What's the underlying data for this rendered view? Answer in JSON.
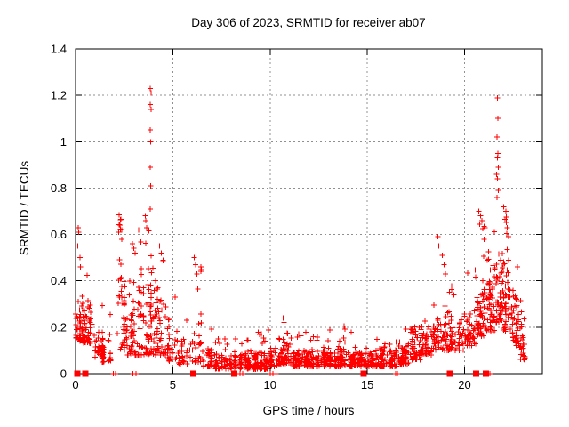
{
  "window": {
    "background": "#ffffff"
  },
  "chart_data": {
    "type": "scatter",
    "title": "Day 306 of 2023, SRMTID for receiver ab07",
    "xlabel": "GPS time / hours",
    "ylabel": "SRMTID / TECUs",
    "xlim": [
      0,
      24
    ],
    "ylim": [
      0,
      1.4
    ],
    "xticks": [
      0,
      5,
      10,
      15,
      20
    ],
    "yticks": [
      0,
      0.2,
      0.4,
      0.6,
      0.8,
      1,
      1.2,
      1.4
    ],
    "grid": {
      "show": true,
      "color": "#909090",
      "dash": [
        2,
        3
      ]
    },
    "axis_color": "#000000",
    "marker": {
      "shape": "plus",
      "color": "#ff0000",
      "size": 7
    },
    "zero_marker": {
      "shape": "square",
      "color": "#ff0000",
      "size": 7
    },
    "legend": "none",
    "seed": 306,
    "density_bins": [
      [
        0.0,
        0.35,
        40,
        0.14,
        0.38,
        0.52,
        0.05
      ],
      [
        0.35,
        0.9,
        50,
        0.13,
        0.33,
        0.45,
        0.04
      ],
      [
        0.9,
        1.4,
        32,
        0.07,
        0.22,
        0.3,
        0.04
      ],
      [
        1.4,
        2.0,
        30,
        0.05,
        0.18,
        0.26,
        0.04
      ],
      [
        2.0,
        2.6,
        48,
        0.1,
        0.52,
        0.69,
        0.06
      ],
      [
        2.6,
        3.2,
        45,
        0.08,
        0.42,
        0.56,
        0.05
      ],
      [
        3.2,
        3.75,
        50,
        0.08,
        0.5,
        0.66,
        0.05
      ],
      [
        3.75,
        4.1,
        40,
        0.08,
        0.55,
        0.62,
        0.05
      ],
      [
        4.1,
        4.7,
        42,
        0.08,
        0.42,
        0.55,
        0.05
      ],
      [
        4.7,
        5.3,
        30,
        0.05,
        0.25,
        0.34,
        0.04
      ],
      [
        5.3,
        5.95,
        28,
        0.04,
        0.17,
        0.26,
        0.04
      ],
      [
        5.95,
        6.45,
        30,
        0.05,
        0.32,
        0.47,
        0.06
      ],
      [
        6.45,
        7.2,
        40,
        0.03,
        0.14,
        0.2,
        0.04
      ],
      [
        7.2,
        8.0,
        55,
        0.02,
        0.1,
        0.15,
        0.04
      ],
      [
        8.0,
        9.0,
        75,
        0.02,
        0.1,
        0.17,
        0.04
      ],
      [
        9.0,
        10.0,
        75,
        0.02,
        0.11,
        0.19,
        0.04
      ],
      [
        10.0,
        10.5,
        38,
        0.03,
        0.12,
        0.17,
        0.04
      ],
      [
        10.5,
        11.0,
        45,
        0.04,
        0.16,
        0.24,
        0.05
      ],
      [
        11.0,
        12.0,
        85,
        0.03,
        0.12,
        0.19,
        0.04
      ],
      [
        12.0,
        13.0,
        85,
        0.03,
        0.12,
        0.17,
        0.04
      ],
      [
        13.0,
        14.0,
        85,
        0.03,
        0.13,
        0.21,
        0.04
      ],
      [
        14.0,
        15.0,
        85,
        0.03,
        0.12,
        0.19,
        0.04
      ],
      [
        15.0,
        16.0,
        85,
        0.03,
        0.12,
        0.17,
        0.04
      ],
      [
        16.0,
        16.6,
        50,
        0.03,
        0.12,
        0.18,
        0.04
      ],
      [
        16.6,
        17.1,
        45,
        0.04,
        0.15,
        0.22,
        0.04
      ],
      [
        17.1,
        17.7,
        50,
        0.06,
        0.22,
        0.34,
        0.05
      ],
      [
        17.7,
        18.4,
        55,
        0.08,
        0.24,
        0.32,
        0.05
      ],
      [
        18.4,
        19.2,
        55,
        0.1,
        0.27,
        0.36,
        0.05
      ],
      [
        19.2,
        20.0,
        55,
        0.1,
        0.28,
        0.38,
        0.05
      ],
      [
        20.0,
        20.6,
        45,
        0.12,
        0.3,
        0.45,
        0.05
      ],
      [
        20.6,
        21.1,
        55,
        0.16,
        0.48,
        0.66,
        0.06
      ],
      [
        21.1,
        21.6,
        55,
        0.18,
        0.55,
        0.68,
        0.06
      ],
      [
        21.6,
        21.95,
        40,
        0.22,
        0.6,
        0.72,
        0.06
      ],
      [
        21.95,
        22.4,
        50,
        0.18,
        0.58,
        0.7,
        0.06
      ],
      [
        22.4,
        22.8,
        42,
        0.12,
        0.38,
        0.5,
        0.05
      ],
      [
        22.8,
        23.1,
        28,
        0.06,
        0.28,
        0.35,
        0.05
      ]
    ],
    "extreme_points": [
      [
        0.14,
        0.63
      ],
      [
        0.17,
        0.61
      ],
      [
        0.12,
        0.55
      ],
      [
        0.22,
        0.5
      ],
      [
        0.26,
        0.46
      ],
      [
        2.25,
        0.685
      ],
      [
        2.32,
        0.665
      ],
      [
        2.28,
        0.64
      ],
      [
        2.22,
        0.61
      ],
      [
        2.38,
        0.58
      ],
      [
        2.92,
        0.56
      ],
      [
        3.0,
        0.54
      ],
      [
        3.06,
        0.52
      ],
      [
        3.58,
        0.68
      ],
      [
        3.62,
        0.66
      ],
      [
        3.65,
        0.63
      ],
      [
        3.84,
        1.23
      ],
      [
        3.88,
        1.21
      ],
      [
        3.85,
        1.16
      ],
      [
        3.88,
        1.14
      ],
      [
        3.84,
        1.05
      ],
      [
        3.86,
        1.0
      ],
      [
        3.85,
        0.89
      ],
      [
        3.87,
        0.81
      ],
      [
        3.85,
        0.71
      ],
      [
        4.32,
        0.55
      ],
      [
        4.42,
        0.52
      ],
      [
        4.5,
        0.49
      ],
      [
        6.1,
        0.5
      ],
      [
        6.18,
        0.47
      ],
      [
        6.24,
        0.43
      ],
      [
        10.68,
        0.24
      ],
      [
        10.72,
        0.22
      ],
      [
        18.62,
        0.59
      ],
      [
        18.68,
        0.55
      ],
      [
        18.85,
        0.51
      ],
      [
        18.95,
        0.47
      ],
      [
        19.02,
        0.43
      ],
      [
        20.72,
        0.7
      ],
      [
        20.82,
        0.68
      ],
      [
        20.88,
        0.66
      ],
      [
        20.78,
        0.645
      ],
      [
        20.93,
        0.625
      ],
      [
        21.68,
        1.19
      ],
      [
        21.71,
        1.1
      ],
      [
        21.66,
        1.02
      ],
      [
        21.72,
        0.95
      ],
      [
        21.69,
        0.93
      ],
      [
        21.74,
        0.89
      ],
      [
        21.64,
        0.86
      ],
      [
        21.7,
        0.84
      ],
      [
        21.73,
        0.79
      ],
      [
        21.67,
        0.76
      ],
      [
        22.02,
        0.72
      ],
      [
        22.12,
        0.7
      ],
      [
        22.08,
        0.665
      ],
      [
        22.2,
        0.63
      ]
    ],
    "zero_squares": [
      0.08,
      0.5,
      6.05,
      8.15,
      14.8,
      19.25,
      20.6,
      21.1
    ],
    "zero_plus": [
      1.95,
      2.05,
      2.95,
      3.1,
      8.45,
      8.6,
      10.0,
      10.15,
      10.3,
      16.45,
      16.55,
      21.3
    ]
  }
}
